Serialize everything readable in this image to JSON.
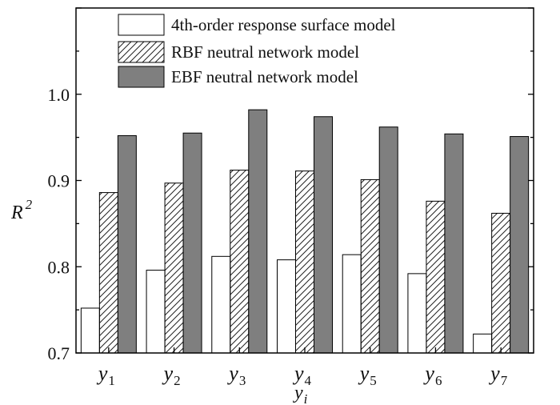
{
  "chart_data": {
    "type": "bar",
    "categories": [
      {
        "base": "y",
        "sub": "1"
      },
      {
        "base": "y",
        "sub": "2"
      },
      {
        "base": "y",
        "sub": "3"
      },
      {
        "base": "y",
        "sub": "4"
      },
      {
        "base": "y",
        "sub": "5"
      },
      {
        "base": "y",
        "sub": "6"
      },
      {
        "base": "y",
        "sub": "7"
      }
    ],
    "series": [
      {
        "name": "4th-order response surface model",
        "fill": "#ffffff",
        "pattern": "none",
        "values": [
          0.752,
          0.796,
          0.812,
          0.808,
          0.814,
          0.792,
          0.722
        ]
      },
      {
        "name": "RBF neutral network model",
        "fill": "#ffffff",
        "pattern": "hatch",
        "values": [
          0.886,
          0.897,
          0.912,
          0.911,
          0.901,
          0.876,
          0.862
        ]
      },
      {
        "name": "EBF neutral network model",
        "fill": "#7f7f7f",
        "pattern": "none",
        "values": [
          0.952,
          0.955,
          0.982,
          0.974,
          0.962,
          0.954,
          0.951
        ]
      }
    ],
    "ylim": [
      0.7,
      1.1
    ],
    "yticks": [
      "0.7",
      "0.8",
      "0.9",
      "1.0"
    ],
    "ylabel": {
      "base": "R",
      "sup": "2"
    },
    "xlabel": {
      "base": "y",
      "sub": "i"
    },
    "legend": "top-center",
    "grid": false
  }
}
